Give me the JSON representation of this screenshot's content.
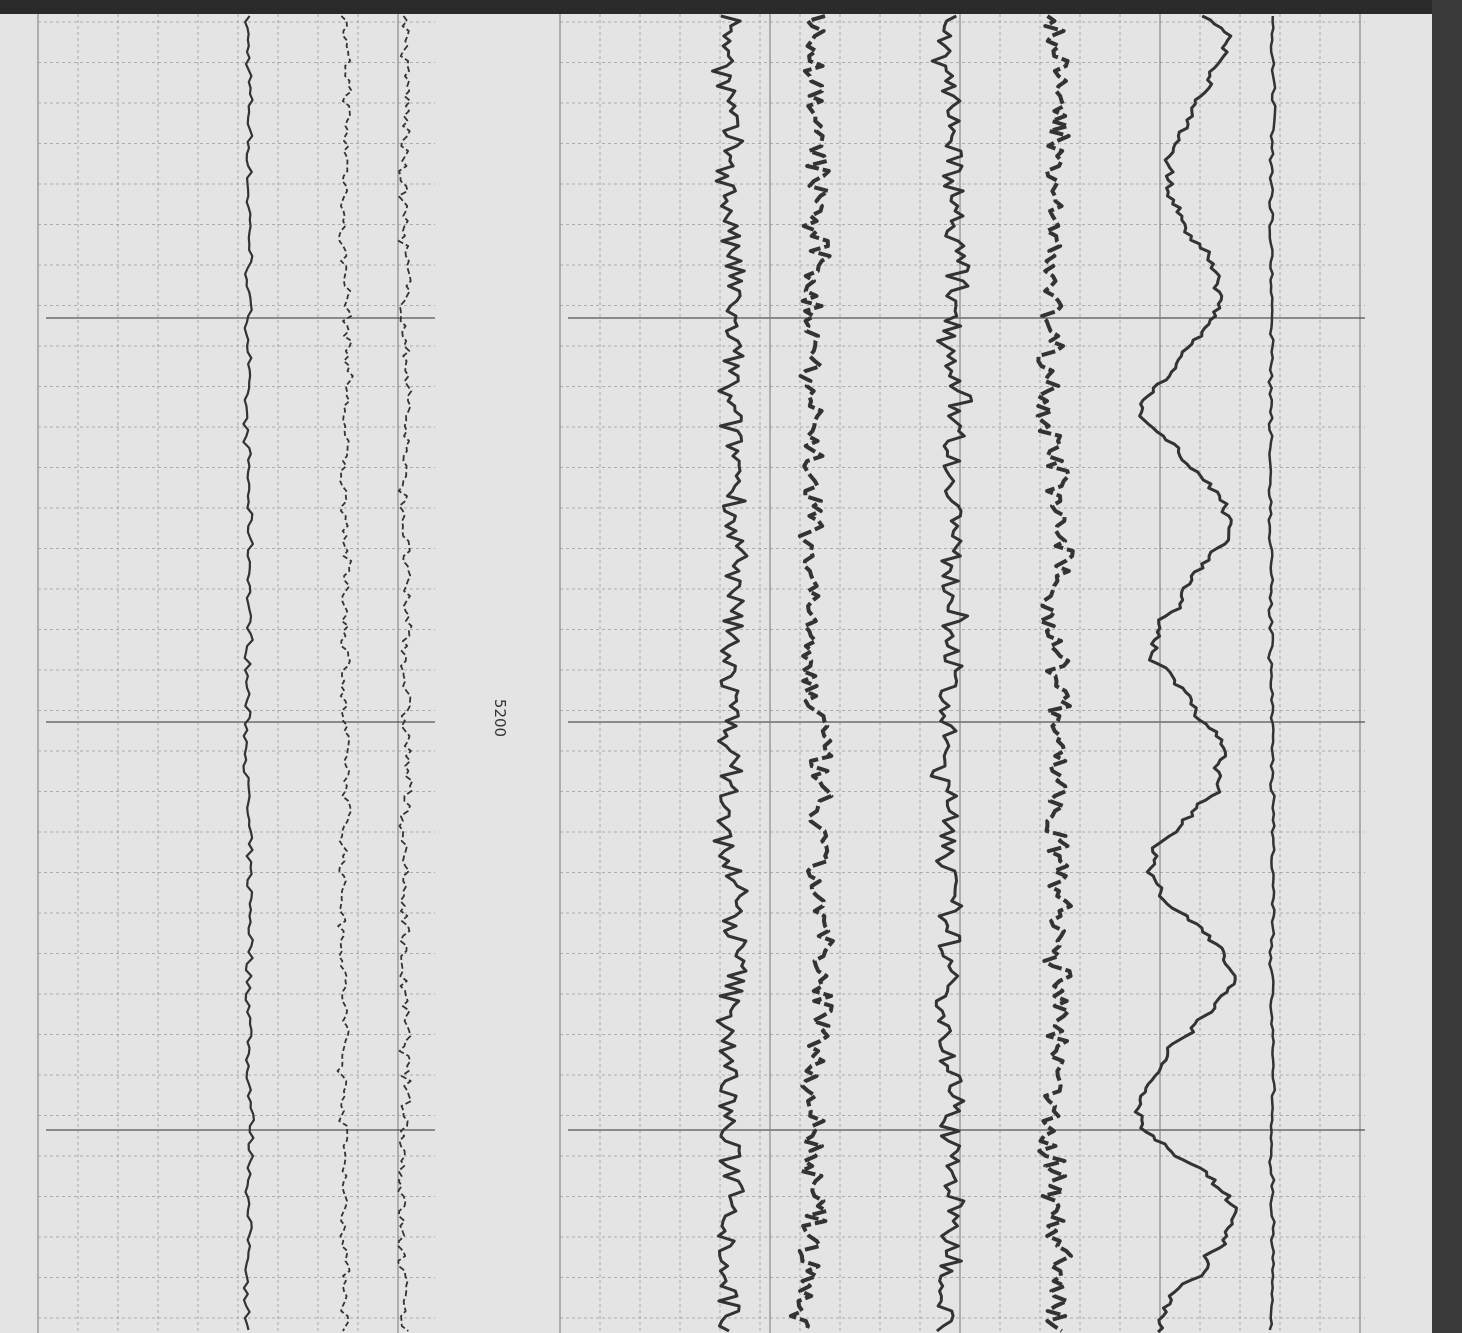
{
  "depth_label": "5200"
}
